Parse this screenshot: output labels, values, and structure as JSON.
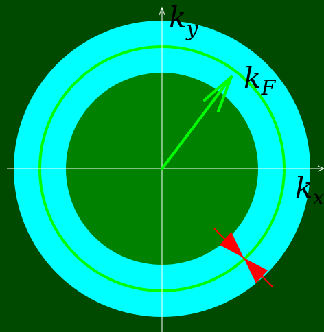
{
  "colors": {
    "background": "#004a00",
    "outer_shell": "#00ffff",
    "inner_disk": "#008200",
    "fermi_circle": "#00ff00",
    "fermi_arrow": "#00ff00",
    "axes": "#ffffff",
    "width_markers": "#ff0000",
    "label_text": "#000000"
  },
  "labels": {
    "ky": {
      "base": "k",
      "sub": "y"
    },
    "kx": {
      "base": "k",
      "sub": "x"
    },
    "kf": {
      "base": "k",
      "sub": "F"
    }
  },
  "icons": {
    "fermi_vector": "arrow-icon",
    "shell_width": "double-arrow-width-icon"
  }
}
